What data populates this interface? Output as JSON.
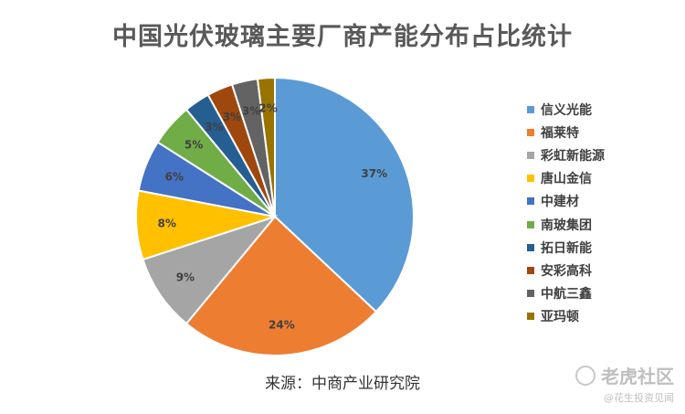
{
  "title": "中国光伏玻璃主要厂商产能分布占比统计",
  "source": "来源：中商产业研究院",
  "watermark": {
    "main": "老虎社区",
    "sub": "@花生投资见闻"
  },
  "chart_data": {
    "type": "pie",
    "title": "中国光伏玻璃主要厂商产能分布占比统计",
    "slices": [
      {
        "label": "信义光能",
        "value": 37,
        "display": "37%",
        "color": "#5b9bd5"
      },
      {
        "label": "福莱特",
        "value": 24,
        "display": "24%",
        "color": "#ed7d31"
      },
      {
        "label": "彩虹新能源",
        "value": 9,
        "display": "9%",
        "color": "#a5a5a5"
      },
      {
        "label": "唐山金信",
        "value": 8,
        "display": "8%",
        "color": "#ffc000"
      },
      {
        "label": "中建材",
        "value": 6,
        "display": "6%",
        "color": "#4472c4"
      },
      {
        "label": "南玻集团",
        "value": 5,
        "display": "5%",
        "color": "#70ad47"
      },
      {
        "label": "拓日新能",
        "value": 3,
        "display": "3%",
        "color": "#255e91"
      },
      {
        "label": "安彩高科",
        "value": 3,
        "display": "3%",
        "color": "#9e480e"
      },
      {
        "label": "中航三鑫",
        "value": 3,
        "display": "3%",
        "color": "#636363"
      },
      {
        "label": "亚玛顿",
        "value": 2,
        "display": "2%",
        "color": "#997300"
      }
    ],
    "legend_position": "right",
    "start_angle": "12 o'clock",
    "direction": "clockwise"
  }
}
